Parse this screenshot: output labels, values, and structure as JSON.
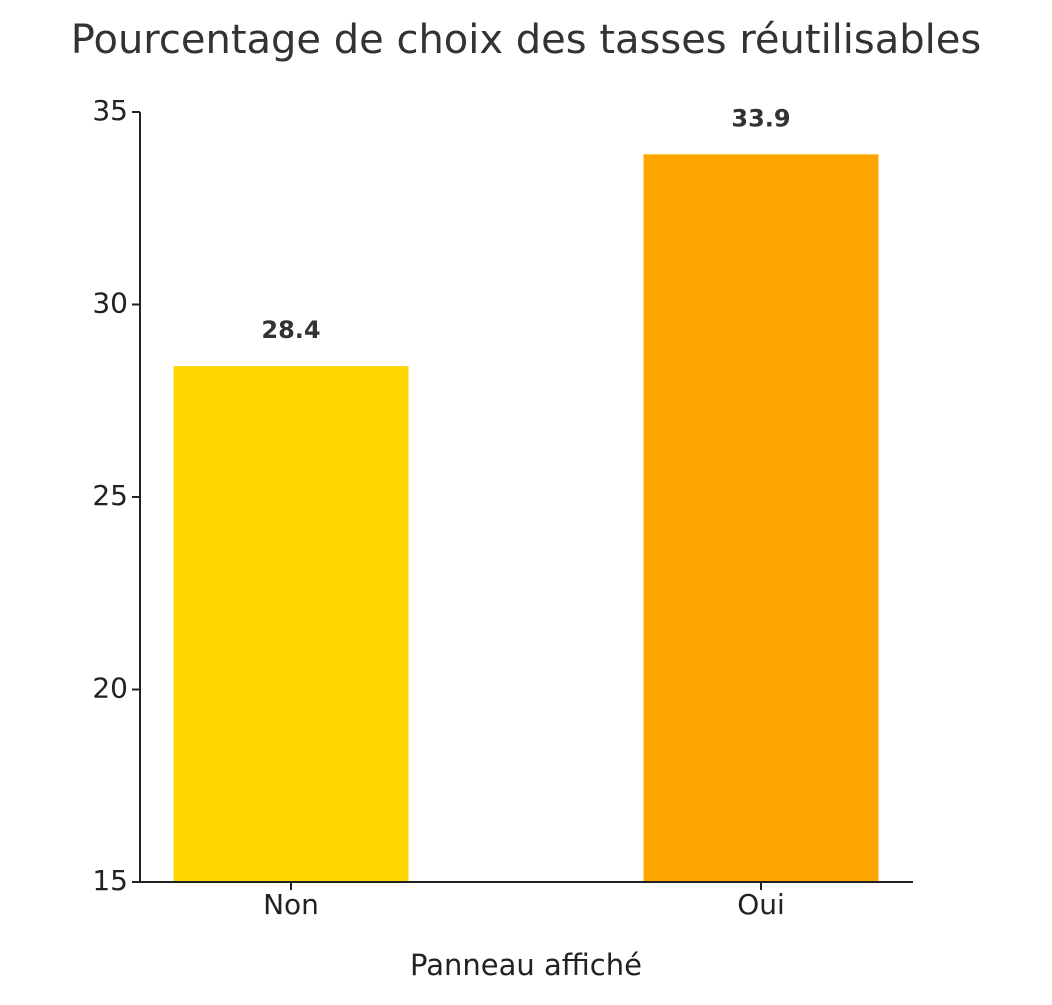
{
  "chart_data": {
    "type": "bar",
    "title": "Pourcentage de choix des tasses réutilisables",
    "x_label": "Panneau affiché",
    "categories": [
      "Non",
      "Oui"
    ],
    "values": [
      28.4,
      33.9
    ],
    "colors": [
      "#FFD700",
      "#FFA500"
    ],
    "ylim": [
      15,
      35
    ],
    "yticks": [
      15,
      20,
      25,
      30,
      35
    ],
    "grid": false
  }
}
